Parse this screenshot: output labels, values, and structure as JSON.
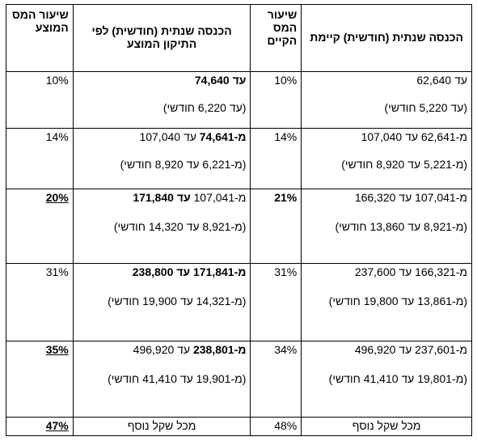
{
  "table": {
    "header": [
      "הכנסה שנתית (חודשית) קיימת",
      "שיעור המס הקיים",
      "הכנסה שנתית (חודשית) לפי התיקון המוצע",
      "שיעור המס המוצע"
    ],
    "rows": [
      {
        "current_range": [
          "עד 62,640"
        ],
        "current_bold": [
          false
        ],
        "current_monthly": "(עד 5,220 חודשי)",
        "current_rate": "10%",
        "current_rate_emphasis": false,
        "proposed_range": [
          "עד 74,640"
        ],
        "proposed_bold": [
          true
        ],
        "proposed_monthly": "(עד 6,220 חודשי)",
        "proposed_rate": "10%",
        "proposed_rate_emphasis": false
      },
      {
        "current_range": [
          "מ-62,641 עד 107,040"
        ],
        "current_bold": [
          false
        ],
        "current_monthly": "(מ-5,221 עד 8,920 חודשי)",
        "current_rate": "14%",
        "current_rate_emphasis": false,
        "proposed_range": [
          "מ-74,641",
          "עד 107,040"
        ],
        "proposed_bold": [
          true,
          false
        ],
        "proposed_monthly": "(מ-6,221 עד 8,920 חודשי)",
        "proposed_rate": "14%",
        "proposed_rate_emphasis": false
      },
      {
        "current_range": [
          "מ-107,041 עד 166,320"
        ],
        "current_bold": [
          false
        ],
        "current_monthly": "(מ-8,921 עד 13,860 חודשי)",
        "current_rate": "21%",
        "current_rate_emphasis": true,
        "proposed_range": [
          "מ-107,041",
          "עד 171,840"
        ],
        "proposed_bold": [
          false,
          true
        ],
        "proposed_monthly": "(מ-8,921 עד 14,320 חודשי)",
        "proposed_rate": "20%",
        "proposed_rate_emphasis": true
      },
      {
        "current_range": [
          "מ-166,321 עד 237,600"
        ],
        "current_bold": [
          false
        ],
        "current_monthly": "(מ-13,861 עד 19,800 חודשי)",
        "current_rate": "31%",
        "current_rate_emphasis": false,
        "proposed_range": [
          "מ-171,841 עד 238,800"
        ],
        "proposed_bold": [
          true
        ],
        "proposed_monthly": "(מ-14,321 עד 19,900 חודשי)",
        "proposed_rate": "31%",
        "proposed_rate_emphasis": false
      },
      {
        "current_range": [
          "מ-237,601 עד 496,920"
        ],
        "current_bold": [
          false
        ],
        "current_monthly": "(מ-19,801 עד 41,410 חודשי)",
        "current_rate": "34%",
        "current_rate_emphasis": false,
        "proposed_range": [
          "מ-238,801",
          "עד 496,920"
        ],
        "proposed_bold": [
          true,
          false
        ],
        "proposed_monthly": "(מ-19,901 עד 41,410 חודשי)",
        "proposed_rate": "35%",
        "proposed_rate_emphasis": true
      },
      {
        "current_range": [
          "מכל שקל נוסף"
        ],
        "current_bold": [
          false
        ],
        "current_rate": "48%",
        "current_rate_emphasis": false,
        "proposed_range": [
          "מכל שקל נוסף"
        ],
        "proposed_bold": [
          false
        ],
        "proposed_rate": "47%",
        "proposed_rate_emphasis": true
      }
    ]
  }
}
